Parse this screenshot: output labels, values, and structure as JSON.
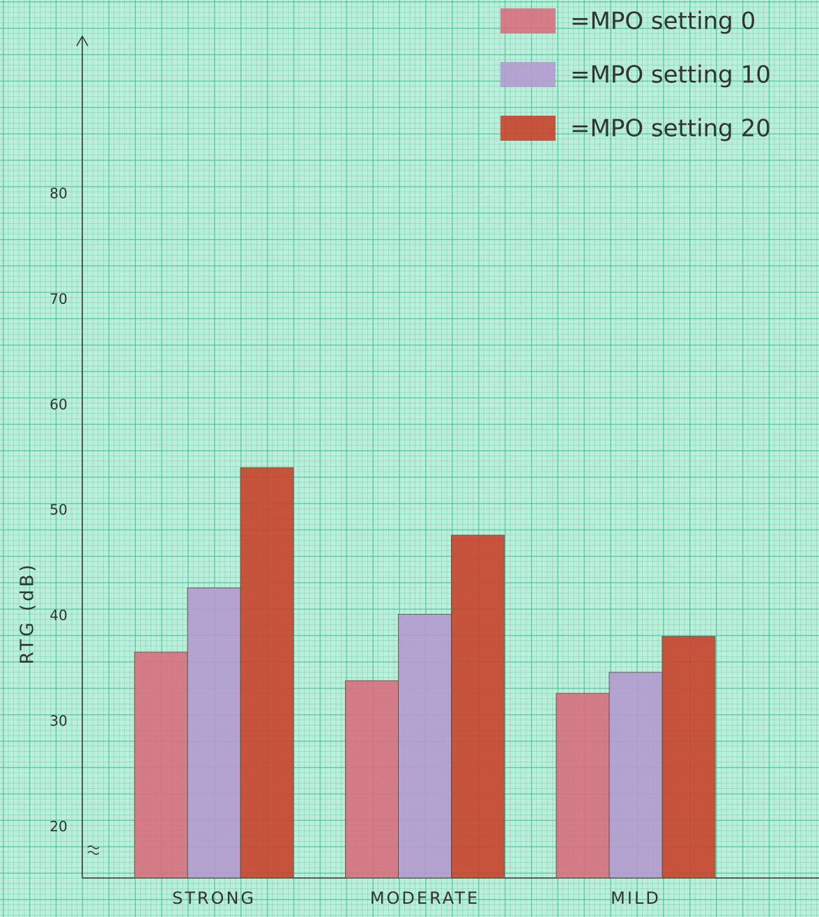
{
  "chart_data": {
    "type": "bar",
    "categories": [
      "STRONG",
      "MODERATE",
      "MILD"
    ],
    "series": [
      {
        "name": "=MPO setting 0",
        "color": "#d7707f",
        "values": [
          36.6,
          33.9,
          32.7
        ]
      },
      {
        "name": "=MPO setting 10",
        "color": "#b49bd0",
        "values": [
          42.7,
          40.2,
          34.7
        ]
      },
      {
        "name": "=MPO setting 20",
        "color": "#c9432b",
        "values": [
          54.1,
          47.7,
          38.1
        ]
      }
    ],
    "y_label": "RTG (dB)",
    "ylim": [
      15.2,
      94.8
    ],
    "yticks": [
      20,
      30,
      40,
      50,
      60,
      70,
      80
    ],
    "legend": "top-right"
  }
}
